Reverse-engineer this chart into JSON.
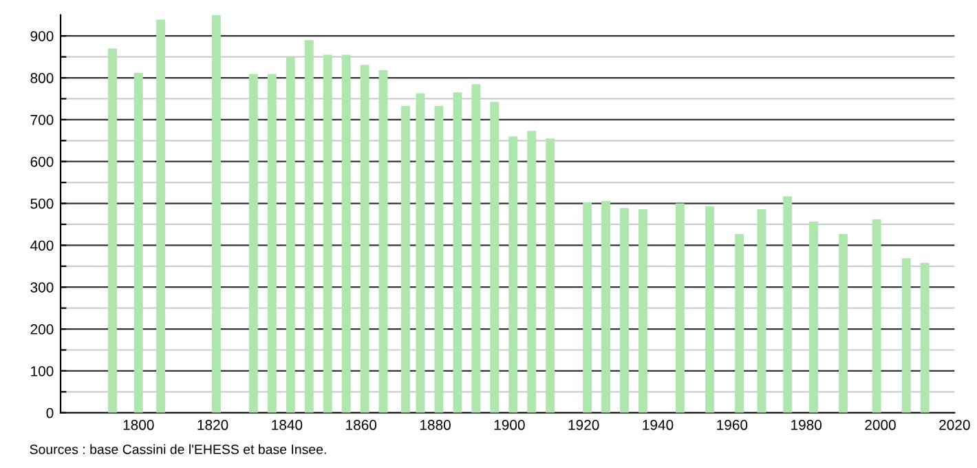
{
  "chart_data": {
    "type": "bar",
    "x": [
      1793,
      1800,
      1806,
      1821,
      1831,
      1836,
      1841,
      1846,
      1851,
      1856,
      1861,
      1866,
      1872,
      1876,
      1881,
      1886,
      1891,
      1896,
      1901,
      1906,
      1911,
      1921,
      1926,
      1931,
      1936,
      1946,
      1954,
      1962,
      1968,
      1975,
      1982,
      1990,
      1999,
      2007,
      2012
    ],
    "values": [
      870,
      812,
      939,
      950,
      809,
      809,
      850,
      890,
      855,
      855,
      831,
      818,
      733,
      763,
      733,
      765,
      785,
      742,
      660,
      673,
      655,
      503,
      506,
      489,
      486,
      500,
      493,
      427,
      486,
      517,
      457,
      427,
      462,
      369,
      358
    ],
    "color": "#aee6ae",
    "xlim": [
      1779,
      2020
    ],
    "xticks": [
      1800,
      1820,
      1840,
      1860,
      1880,
      1900,
      1920,
      1940,
      1960,
      1980,
      2000,
      2020
    ],
    "ylim": [
      0,
      950
    ],
    "yticks": [
      0,
      {
        "value": 50,
        "label": null
      },
      100,
      {
        "value": 150,
        "label": null
      },
      200,
      {
        "value": 250,
        "label": null
      },
      300,
      {
        "value": 350,
        "label": null
      },
      400,
      {
        "value": 450,
        "label": null
      },
      500,
      {
        "value": 550,
        "label": null
      },
      600,
      {
        "value": 650,
        "label": null
      },
      700,
      {
        "value": 750,
        "label": null
      },
      800,
      {
        "value": 850,
        "label": null
      },
      900
    ],
    "grid": "y",
    "annotations": [
      "Sources : base Cassini de l'EHESS et base Insee."
    ]
  }
}
